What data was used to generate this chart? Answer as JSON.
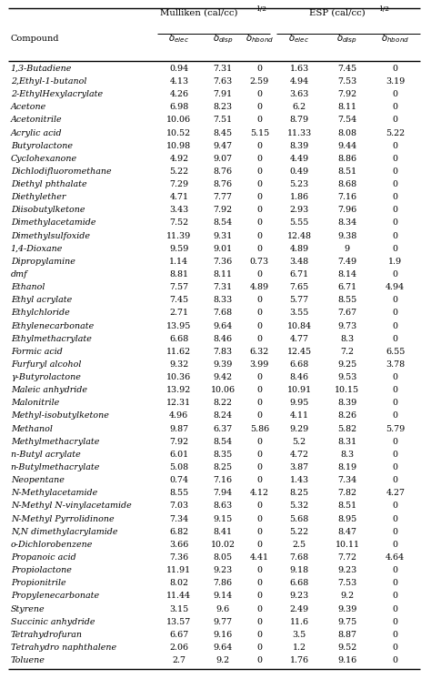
{
  "rows": [
    [
      "1,3-Butadiene",
      "0.94",
      "7.31",
      "0",
      "1.63",
      "7.45",
      "0"
    ],
    [
      "2,Ethyl-1-butanol",
      "4.13",
      "7.63",
      "2.59",
      "4.94",
      "7.53",
      "3.19"
    ],
    [
      "2-EthylHexylacrylate",
      "4.26",
      "7.91",
      "0",
      "3.63",
      "7.92",
      "0"
    ],
    [
      "Acetone",
      "6.98",
      "8.23",
      "0",
      "6.2",
      "8.11",
      "0"
    ],
    [
      "Acetonitrile",
      "10.06",
      "7.51",
      "0",
      "8.79",
      "7.54",
      "0"
    ],
    [
      "Acrylic acid",
      "10.52",
      "8.45",
      "5.15",
      "11.33",
      "8.08",
      "5.22"
    ],
    [
      "Butyrolactone",
      "10.98",
      "9.47",
      "0",
      "8.39",
      "9.44",
      "0"
    ],
    [
      "Cyclohexanone",
      "4.92",
      "9.07",
      "0",
      "4.49",
      "8.86",
      "0"
    ],
    [
      "Dichlodifluoromethane",
      "5.22",
      "8.76",
      "0",
      "0.49",
      "8.51",
      "0"
    ],
    [
      "Diethyl phthalate",
      "7.29",
      "8.76",
      "0",
      "5.23",
      "8.68",
      "0"
    ],
    [
      "Diethylether",
      "4.71",
      "7.77",
      "0",
      "1.86",
      "7.16",
      "0"
    ],
    [
      "Diisobutylketone",
      "3.43",
      "7.92",
      "0",
      "2.93",
      "7.96",
      "0"
    ],
    [
      "Dimethylacetamide",
      "7.52",
      "8.54",
      "0",
      "5.55",
      "8.34",
      "0"
    ],
    [
      "Dimethylsulfoxide",
      "11.39",
      "9.31",
      "0",
      "12.48",
      "9.38",
      "0"
    ],
    [
      "1,4-Dioxane",
      "9.59",
      "9.01",
      "0",
      "4.89",
      "9",
      "0"
    ],
    [
      "Dipropylamine",
      "1.14",
      "7.36",
      "0.73",
      "3.48",
      "7.49",
      "1.9"
    ],
    [
      "dmf",
      "8.81",
      "8.11",
      "0",
      "6.71",
      "8.14",
      "0"
    ],
    [
      "Ethanol",
      "7.57",
      "7.31",
      "4.89",
      "7.65",
      "6.71",
      "4.94"
    ],
    [
      "Ethyl acrylate",
      "7.45",
      "8.33",
      "0",
      "5.77",
      "8.55",
      "0"
    ],
    [
      "Ethylchloride",
      "2.71",
      "7.68",
      "0",
      "3.55",
      "7.67",
      "0"
    ],
    [
      "Ethylenecarbonate",
      "13.95",
      "9.64",
      "0",
      "10.84",
      "9.73",
      "0"
    ],
    [
      "Ethylmethacrylate",
      "6.68",
      "8.46",
      "0",
      "4.77",
      "8.3",
      "0"
    ],
    [
      "Formic acid",
      "11.62",
      "7.83",
      "6.32",
      "12.45",
      "7.2",
      "6.55"
    ],
    [
      "Furfuryl alcohol",
      "9.32",
      "9.39",
      "3.99",
      "6.68",
      "9.25",
      "3.78"
    ],
    [
      "γ-Butyrolactone",
      "10.36",
      "9.42",
      "0",
      "8.46",
      "9.53",
      "0"
    ],
    [
      "Maleic anhydride",
      "13.92",
      "10.06",
      "0",
      "10.91",
      "10.15",
      "0"
    ],
    [
      "Malonitrile",
      "12.31",
      "8.22",
      "0",
      "9.95",
      "8.39",
      "0"
    ],
    [
      "Methyl-isobutylketone",
      "4.96",
      "8.24",
      "0",
      "4.11",
      "8.26",
      "0"
    ],
    [
      "Methanol",
      "9.87",
      "6.37",
      "5.86",
      "9.29",
      "5.82",
      "5.79"
    ],
    [
      "Methylmethacrylate",
      "7.92",
      "8.54",
      "0",
      "5.2",
      "8.31",
      "0"
    ],
    [
      "n-Butyl acrylate",
      "6.01",
      "8.35",
      "0",
      "4.72",
      "8.3",
      "0"
    ],
    [
      "n-Butylmethacrylate",
      "5.08",
      "8.25",
      "0",
      "3.87",
      "8.19",
      "0"
    ],
    [
      "Neopentane",
      "0.74",
      "7.16",
      "0",
      "1.43",
      "7.34",
      "0"
    ],
    [
      "N-Methylacetamide",
      "8.55",
      "7.94",
      "4.12",
      "8.25",
      "7.82",
      "4.27"
    ],
    [
      "N-Methyl N-vinylacetamide",
      "7.03",
      "8.63",
      "0",
      "5.32",
      "8.51",
      "0"
    ],
    [
      "N-Methyl Pyrrolidinone",
      "7.34",
      "9.15",
      "0",
      "5.68",
      "8.95",
      "0"
    ],
    [
      "N,N dimethylacrylamide",
      "6.82",
      "8.41",
      "0",
      "5.22",
      "8.47",
      "0"
    ],
    [
      "o-Dichlorobenzene",
      "3.66",
      "10.02",
      "0",
      "2.5",
      "10.11",
      "0"
    ],
    [
      "Propanoic acid",
      "7.36",
      "8.05",
      "4.41",
      "7.68",
      "7.72",
      "4.64"
    ],
    [
      "Propiolactone",
      "11.91",
      "9.23",
      "0",
      "9.18",
      "9.23",
      "0"
    ],
    [
      "Propionitrile",
      "8.02",
      "7.86",
      "0",
      "6.68",
      "7.53",
      "0"
    ],
    [
      "Propylenecarbonate",
      "11.44",
      "9.14",
      "0",
      "9.23",
      "9.2",
      "0"
    ],
    [
      "Styrene",
      "3.15",
      "9.6",
      "0",
      "2.49",
      "9.39",
      "0"
    ],
    [
      "Succinic anhydride",
      "13.57",
      "9.77",
      "0",
      "11.6",
      "9.75",
      "0"
    ],
    [
      "Tetrahydrofuran",
      "6.67",
      "9.16",
      "0",
      "3.5",
      "8.87",
      "0"
    ],
    [
      "Tetrahydro naphthalene",
      "2.06",
      "9.64",
      "0",
      "1.2",
      "9.52",
      "0"
    ],
    [
      "Toluene",
      "2.7",
      "9.2",
      "0",
      "1.76",
      "9.16",
      "0"
    ]
  ],
  "bg_color": "#ffffff",
  "text_color": "#000000",
  "font_size": 6.8,
  "italic_compounds": [
    "dmf",
    "N-Methyl N-vinylacetamide",
    "N-Methyl Pyrrolidinone",
    "N,N dimethylacrylamide",
    "N-Methylacetamide",
    "Malonitrile",
    "Maleic anhydride",
    "Methyl-isobutylketone",
    "Methanol",
    "Methylmethacrylate",
    "n-Butyl acrylate",
    "n-Butylmethacrylate",
    "Neopentane"
  ]
}
